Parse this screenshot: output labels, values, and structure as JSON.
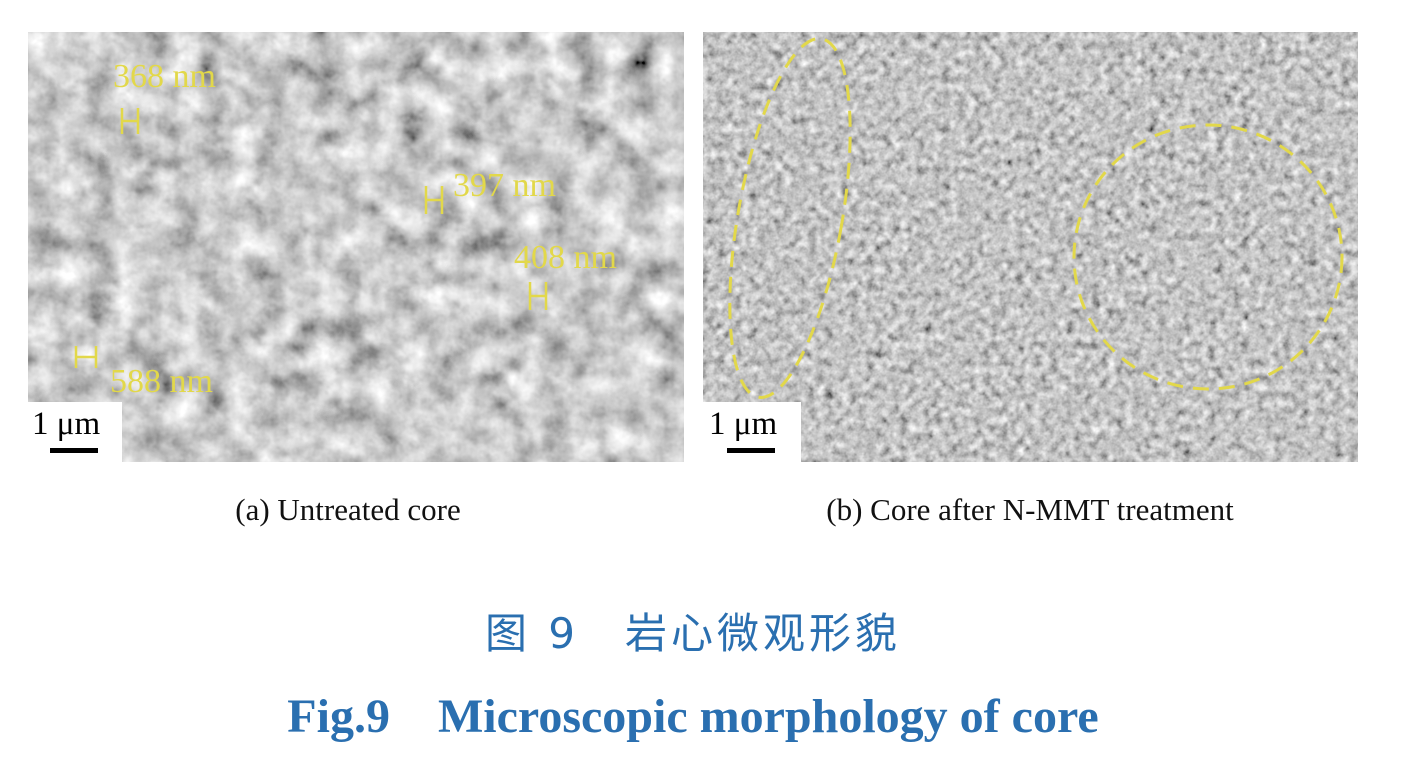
{
  "panels": [
    {
      "caption": "(a) Untreated core",
      "scale_bar": "1 μm",
      "annotations": [
        "368 nm",
        "397 nm",
        "408 nm",
        "588 nm"
      ]
    },
    {
      "caption": "(b) Core after N-MMT treatment",
      "scale_bar": "1 μm"
    }
  ],
  "caption": {
    "chinese": "图 9　岩心微观形貌",
    "english": "Fig.9　Microscopic morphology of core"
  }
}
